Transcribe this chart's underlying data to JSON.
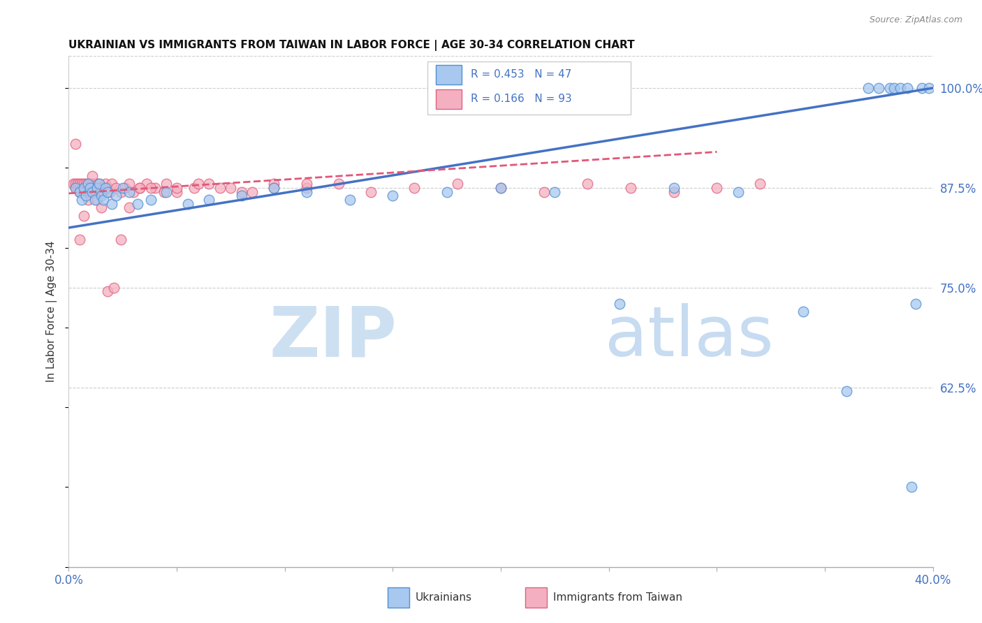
{
  "title": "UKRAINIAN VS IMMIGRANTS FROM TAIWAN IN LABOR FORCE | AGE 30-34 CORRELATION CHART",
  "source": "Source: ZipAtlas.com",
  "ylabel": "In Labor Force | Age 30-34",
  "xlim": [
    0.0,
    0.4
  ],
  "ylim": [
    0.4,
    1.04
  ],
  "ytick_values": [
    0.625,
    0.75,
    0.875,
    1.0
  ],
  "ytick_labels": [
    "62.5%",
    "75.0%",
    "87.5%",
    "100.0%"
  ],
  "blue_R": 0.453,
  "blue_N": 47,
  "pink_R": 0.166,
  "pink_N": 93,
  "blue_fill": "#a8c8f0",
  "pink_fill": "#f4b0c0",
  "blue_edge": "#5090d0",
  "pink_edge": "#e06080",
  "blue_line": "#4472c4",
  "pink_line": "#e05878",
  "legend_blue": "Ukrainians",
  "legend_pink": "Immigrants from Taiwan",
  "blue_x": [
    0.003,
    0.005,
    0.006,
    0.007,
    0.008,
    0.009,
    0.01,
    0.011,
    0.012,
    0.013,
    0.014,
    0.015,
    0.016,
    0.017,
    0.018,
    0.02,
    0.022,
    0.025,
    0.028,
    0.032,
    0.038,
    0.045,
    0.055,
    0.065,
    0.08,
    0.095,
    0.11,
    0.13,
    0.15,
    0.175,
    0.2,
    0.225,
    0.255,
    0.28,
    0.31,
    0.34,
    0.36,
    0.37,
    0.375,
    0.38,
    0.382,
    0.385,
    0.388,
    0.39,
    0.392,
    0.395,
    0.398
  ],
  "blue_y": [
    0.875,
    0.87,
    0.86,
    0.875,
    0.865,
    0.88,
    0.875,
    0.87,
    0.86,
    0.875,
    0.88,
    0.865,
    0.86,
    0.875,
    0.87,
    0.855,
    0.865,
    0.875,
    0.87,
    0.855,
    0.86,
    0.87,
    0.855,
    0.86,
    0.865,
    0.875,
    0.87,
    0.86,
    0.865,
    0.87,
    0.875,
    0.87,
    0.73,
    0.875,
    0.87,
    0.72,
    0.62,
    1.0,
    1.0,
    1.0,
    1.0,
    1.0,
    1.0,
    0.5,
    0.73,
    1.0,
    1.0
  ],
  "pink_x": [
    0.002,
    0.003,
    0.003,
    0.004,
    0.004,
    0.005,
    0.005,
    0.005,
    0.006,
    0.006,
    0.006,
    0.007,
    0.007,
    0.007,
    0.008,
    0.008,
    0.008,
    0.008,
    0.009,
    0.009,
    0.009,
    0.009,
    0.01,
    0.01,
    0.01,
    0.01,
    0.011,
    0.011,
    0.011,
    0.012,
    0.012,
    0.012,
    0.013,
    0.013,
    0.013,
    0.014,
    0.014,
    0.014,
    0.015,
    0.015,
    0.016,
    0.016,
    0.017,
    0.018,
    0.019,
    0.02,
    0.022,
    0.024,
    0.026,
    0.028,
    0.03,
    0.033,
    0.036,
    0.04,
    0.045,
    0.05,
    0.058,
    0.065,
    0.075,
    0.085,
    0.095,
    0.11,
    0.125,
    0.14,
    0.16,
    0.18,
    0.2,
    0.22,
    0.24,
    0.26,
    0.28,
    0.3,
    0.32,
    0.003,
    0.005,
    0.007,
    0.009,
    0.011,
    0.013,
    0.015,
    0.018,
    0.021,
    0.024,
    0.028,
    0.033,
    0.038,
    0.044,
    0.05,
    0.06,
    0.07,
    0.08,
    0.095,
    0.11
  ],
  "pink_y": [
    0.88,
    0.875,
    0.88,
    0.875,
    0.88,
    0.875,
    0.87,
    0.88,
    0.875,
    0.87,
    0.88,
    0.875,
    0.87,
    0.88,
    0.875,
    0.87,
    0.88,
    0.875,
    0.875,
    0.87,
    0.88,
    0.875,
    0.875,
    0.87,
    0.88,
    0.875,
    0.875,
    0.87,
    0.88,
    0.875,
    0.87,
    0.88,
    0.875,
    0.87,
    0.88,
    0.875,
    0.87,
    0.88,
    0.875,
    0.87,
    0.875,
    0.87,
    0.88,
    0.875,
    0.87,
    0.88,
    0.875,
    0.87,
    0.875,
    0.88,
    0.87,
    0.875,
    0.88,
    0.875,
    0.88,
    0.87,
    0.875,
    0.88,
    0.875,
    0.87,
    0.88,
    0.875,
    0.88,
    0.87,
    0.875,
    0.88,
    0.875,
    0.87,
    0.88,
    0.875,
    0.87,
    0.875,
    0.88,
    0.93,
    0.81,
    0.84,
    0.86,
    0.89,
    0.86,
    0.85,
    0.745,
    0.75,
    0.81,
    0.85,
    0.875,
    0.875,
    0.87,
    0.875,
    0.88,
    0.875,
    0.87,
    0.875,
    0.88
  ],
  "blue_line_x": [
    0.0,
    0.4
  ],
  "blue_line_y": [
    0.825,
    1.0
  ],
  "pink_line_x": [
    0.0,
    0.3
  ],
  "pink_line_y": [
    0.868,
    0.92
  ]
}
